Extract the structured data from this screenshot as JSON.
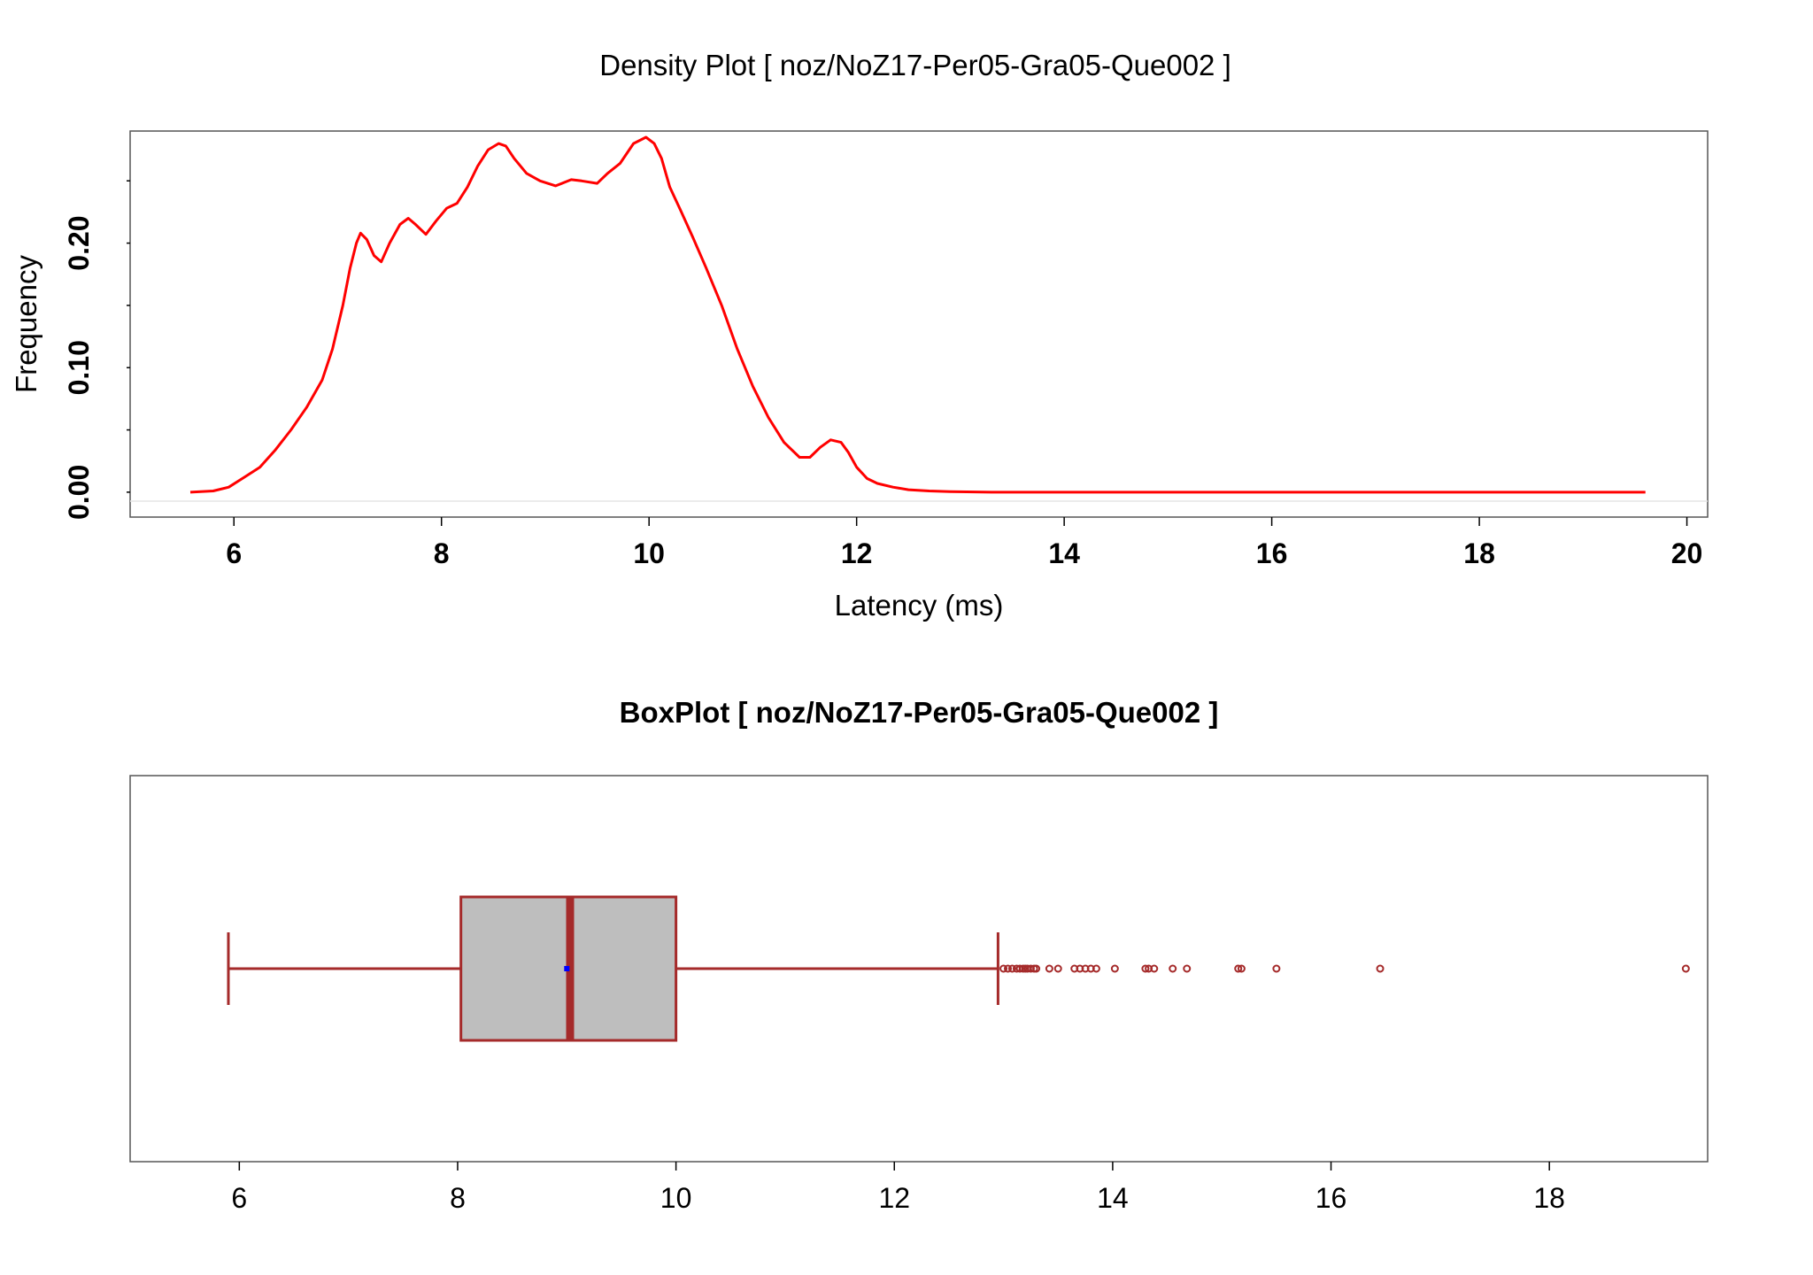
{
  "chart_data": [
    {
      "type": "line",
      "title": "Density Plot [ noz/NoZ17-Per05-Gra05-Que002 ]",
      "xlabel": "Latency (ms)",
      "ylabel": "Frequency",
      "xlim": [
        5.0,
        20.2
      ],
      "ylim": [
        -0.02,
        0.29
      ],
      "x_ticks": [
        "6",
        "8",
        "10",
        "12",
        "14",
        "16",
        "18",
        "20"
      ],
      "y_ticks": [
        "0.00",
        "0.10",
        "0.20"
      ],
      "line_color": "#ff0000",
      "grid": false,
      "series": [
        {
          "x": [
            5.58,
            5.8,
            5.95,
            6.1,
            6.25,
            6.4,
            6.55,
            6.7,
            6.85,
            6.95,
            7.05,
            7.12,
            7.18,
            7.22,
            7.28,
            7.35,
            7.42,
            7.5,
            7.6,
            7.68,
            7.75,
            7.85,
            7.95,
            8.05,
            8.15,
            8.25,
            8.35,
            8.45,
            8.55,
            8.62,
            8.7,
            8.82,
            8.95,
            9.1,
            9.25,
            9.35,
            9.5,
            9.6,
            9.72,
            9.85,
            9.97,
            10.05,
            10.12,
            10.2,
            10.3,
            10.42,
            10.55,
            10.7,
            10.85,
            11.0,
            11.15,
            11.3,
            11.45,
            11.55,
            11.65,
            11.75,
            11.85,
            11.92,
            12.0,
            12.1,
            12.2,
            12.35,
            12.5,
            12.7,
            12.9,
            13.3,
            14.0,
            15.0,
            16.0,
            17.0,
            18.0,
            19.0,
            19.6
          ],
          "y": [
            0.0,
            0.001,
            0.004,
            0.012,
            0.02,
            0.034,
            0.05,
            0.068,
            0.09,
            0.115,
            0.15,
            0.18,
            0.2,
            0.208,
            0.203,
            0.19,
            0.185,
            0.2,
            0.215,
            0.22,
            0.215,
            0.207,
            0.218,
            0.228,
            0.232,
            0.245,
            0.262,
            0.275,
            0.28,
            0.278,
            0.268,
            0.256,
            0.25,
            0.246,
            0.251,
            0.25,
            0.248,
            0.256,
            0.264,
            0.28,
            0.285,
            0.28,
            0.268,
            0.245,
            0.227,
            0.205,
            0.18,
            0.15,
            0.115,
            0.085,
            0.06,
            0.04,
            0.028,
            0.028,
            0.036,
            0.042,
            0.04,
            0.032,
            0.02,
            0.011,
            0.007,
            0.004,
            0.002,
            0.001,
            0.0005,
            0.0,
            0.0,
            0.0,
            0.0,
            0.0,
            0.0,
            0.0,
            0.0
          ]
        }
      ]
    },
    {
      "type": "box",
      "title": "BoxPlot [ noz/NoZ17-Per05-Gra05-Que002 ]",
      "xlim": [
        5.0,
        19.45
      ],
      "x_ticks": [
        "6",
        "8",
        "10",
        "12",
        "14",
        "16",
        "18"
      ],
      "color": "#a52a2a",
      "box_fill": "#bebebe",
      "mean_color": "#0000ff",
      "whisker_low": 5.9,
      "q1": 8.03,
      "median": 9.03,
      "mean": 9.0,
      "q3": 10.0,
      "whisker_high": 12.95,
      "outliers": [
        13.0,
        13.04,
        13.08,
        13.12,
        13.15,
        13.18,
        13.2,
        13.22,
        13.25,
        13.28,
        13.3,
        13.42,
        13.5,
        13.65,
        13.7,
        13.75,
        13.8,
        13.85,
        14.02,
        14.3,
        14.33,
        14.38,
        14.55,
        14.68,
        15.15,
        15.18,
        15.5,
        16.45,
        19.25
      ]
    }
  ]
}
